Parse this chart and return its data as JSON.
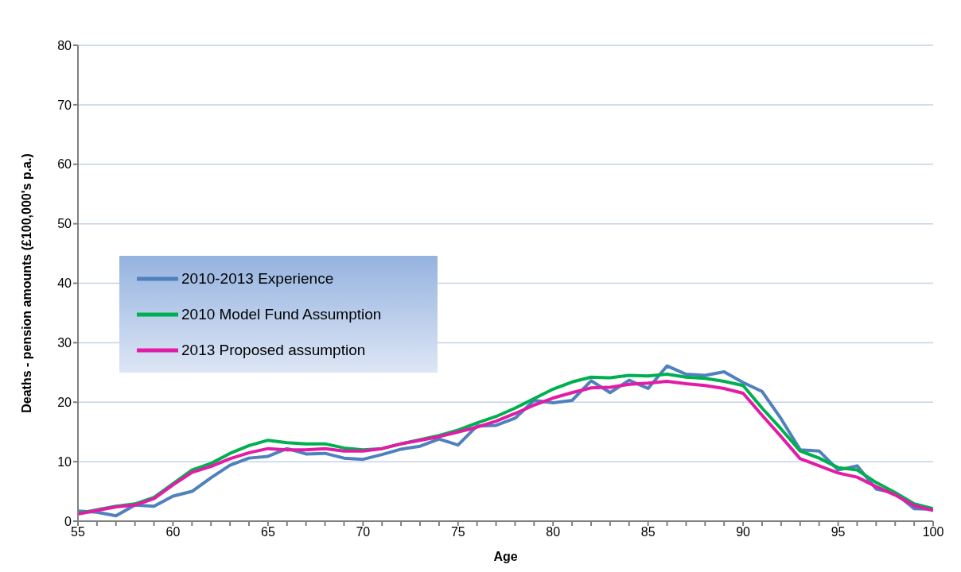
{
  "chart_data": {
    "type": "line",
    "xlabel": "Age",
    "ylabel": "Deaths - pension amounts (£100,000's p.a.)",
    "x": [
      55,
      56,
      57,
      58,
      59,
      60,
      61,
      62,
      63,
      64,
      65,
      66,
      67,
      68,
      69,
      70,
      71,
      72,
      73,
      74,
      75,
      76,
      77,
      78,
      79,
      80,
      81,
      82,
      83,
      84,
      85,
      86,
      87,
      88,
      89,
      90,
      91,
      92,
      93,
      94,
      95,
      96,
      97,
      98,
      99,
      100
    ],
    "series": [
      {
        "name": "2010-2013 Experience",
        "color": "#4f81bd",
        "values": [
          1.7,
          1.5,
          0.9,
          2.7,
          2.5,
          4.2,
          5.0,
          7.3,
          9.4,
          10.6,
          10.9,
          12.2,
          11.3,
          11.4,
          10.6,
          10.4,
          11.2,
          12.1,
          12.6,
          13.8,
          12.8,
          16.0,
          16.1,
          17.3,
          20.3,
          19.9,
          20.3,
          23.6,
          21.6,
          23.7,
          22.3,
          26.1,
          24.7,
          24.5,
          25.1,
          23.3,
          21.8,
          17.2,
          12.0,
          11.8,
          8.6,
          9.3,
          5.4,
          4.7,
          2.1,
          2.0
        ]
      },
      {
        "name": "2010 Model Fund Assumption",
        "color": "#00b050",
        "values": [
          1.3,
          1.9,
          2.5,
          2.9,
          4.0,
          6.3,
          8.6,
          9.7,
          11.4,
          12.7,
          13.6,
          13.2,
          13.0,
          13.0,
          12.3,
          12.0,
          12.2,
          13.0,
          13.7,
          14.4,
          15.3,
          16.5,
          17.6,
          19.0,
          20.6,
          22.2,
          23.4,
          24.2,
          24.1,
          24.5,
          24.4,
          24.7,
          24.2,
          24.0,
          23.5,
          22.8,
          19.0,
          15.5,
          11.8,
          10.6,
          9.0,
          8.6,
          6.5,
          4.8,
          2.9,
          2.1
        ]
      },
      {
        "name": "2013 Proposed assumption",
        "color": "#e31ca6",
        "values": [
          1.2,
          1.8,
          2.4,
          2.7,
          3.8,
          6.1,
          8.2,
          9.2,
          10.5,
          11.5,
          12.2,
          12.0,
          12.0,
          12.2,
          11.8,
          11.8,
          12.2,
          13.0,
          13.6,
          14.2,
          15.0,
          15.8,
          16.8,
          18.1,
          19.5,
          20.7,
          21.6,
          22.4,
          22.5,
          23.0,
          23.2,
          23.5,
          23.1,
          22.8,
          22.3,
          21.5,
          17.8,
          14.2,
          10.5,
          9.3,
          8.1,
          7.4,
          5.8,
          4.4,
          2.6,
          1.8
        ]
      }
    ],
    "xlim": [
      55,
      100
    ],
    "xticks": [
      55,
      {
        "value": 56,
        "label": null
      },
      {
        "value": 57,
        "label": null
      },
      {
        "value": 58,
        "label": null
      },
      {
        "value": 59,
        "label": null
      },
      60,
      {
        "value": 61,
        "label": null
      },
      {
        "value": 62,
        "label": null
      },
      {
        "value": 63,
        "label": null
      },
      {
        "value": 64,
        "label": null
      },
      65,
      {
        "value": 66,
        "label": null
      },
      {
        "value": 67,
        "label": null
      },
      {
        "value": 68,
        "label": null
      },
      {
        "value": 69,
        "label": null
      },
      70,
      {
        "value": 71,
        "label": null
      },
      {
        "value": 72,
        "label": null
      },
      {
        "value": 73,
        "label": null
      },
      {
        "value": 74,
        "label": null
      },
      75,
      {
        "value": 76,
        "label": null
      },
      {
        "value": 77,
        "label": null
      },
      {
        "value": 78,
        "label": null
      },
      {
        "value": 79,
        "label": null
      },
      80,
      {
        "value": 81,
        "label": null
      },
      {
        "value": 82,
        "label": null
      },
      {
        "value": 83,
        "label": null
      },
      {
        "value": 84,
        "label": null
      },
      85,
      {
        "value": 86,
        "label": null
      },
      {
        "value": 87,
        "label": null
      },
      {
        "value": 88,
        "label": null
      },
      {
        "value": 89,
        "label": null
      },
      90,
      {
        "value": 91,
        "label": null
      },
      {
        "value": 92,
        "label": null
      },
      {
        "value": 93,
        "label": null
      },
      {
        "value": 94,
        "label": null
      },
      95,
      {
        "value": 96,
        "label": null
      },
      {
        "value": 97,
        "label": null
      },
      {
        "value": 98,
        "label": null
      },
      {
        "value": 99,
        "label": null
      },
      100
    ],
    "ylim": [
      0,
      80
    ],
    "yticks": [
      0,
      10,
      20,
      30,
      40,
      50,
      60,
      70,
      80
    ],
    "grid": "y",
    "legend": "left",
    "marker": "none",
    "line_style": "solid"
  }
}
